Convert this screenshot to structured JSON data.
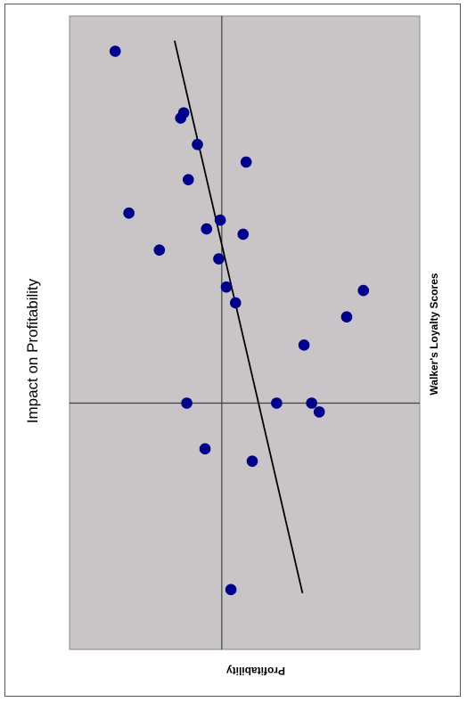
{
  "chart_data": {
    "type": "scatter",
    "title": "Impact on Profitability",
    "xlabel": "Profitability",
    "ylabel": "Walker's Loyalty Scores",
    "xlim": [
      -10,
      13
    ],
    "ylim": [
      -14,
      22
    ],
    "grid": false,
    "legend": "none",
    "points": [
      {
        "x": -7.0,
        "y": 20.0
      },
      {
        "x": -2.5,
        "y": 16.5
      },
      {
        "x": -2.7,
        "y": 16.2
      },
      {
        "x": -1.6,
        "y": 14.7
      },
      {
        "x": 1.6,
        "y": 13.7
      },
      {
        "x": -2.2,
        "y": 12.7
      },
      {
        "x": -6.1,
        "y": 10.8
      },
      {
        "x": -0.1,
        "y": 10.4
      },
      {
        "x": -1.0,
        "y": 9.9
      },
      {
        "x": 1.4,
        "y": 9.6
      },
      {
        "x": -4.1,
        "y": 8.7
      },
      {
        "x": -0.2,
        "y": 8.2
      },
      {
        "x": 0.3,
        "y": 6.6
      },
      {
        "x": 0.9,
        "y": 5.7
      },
      {
        "x": 9.3,
        "y": 6.4
      },
      {
        "x": 8.2,
        "y": 4.9
      },
      {
        "x": 5.4,
        "y": 3.3
      },
      {
        "x": -2.3,
        "y": 0.0
      },
      {
        "x": 3.6,
        "y": 0.0
      },
      {
        "x": 5.9,
        "y": 0.0
      },
      {
        "x": 6.4,
        "y": -0.5
      },
      {
        "x": -1.1,
        "y": -2.6
      },
      {
        "x": 2.0,
        "y": -3.3
      },
      {
        "x": 0.6,
        "y": -10.6
      }
    ],
    "trendline": [
      {
        "x": -3.1,
        "y": 20.6
      },
      {
        "x": 5.3,
        "y": -10.8
      }
    ]
  },
  "colors": {
    "plot_background": "#c8c4c8",
    "marker": "#00008b",
    "axis_line": "#404040",
    "trendline": "#000000"
  }
}
